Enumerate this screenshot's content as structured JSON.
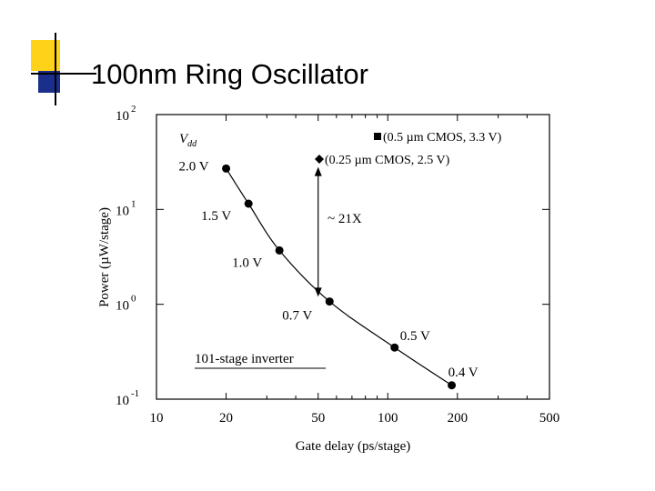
{
  "slide": {
    "title": "100nm Ring Oscillator",
    "colors": {
      "accent_yellow": "#ffd21a",
      "accent_blue": "#1a2f8c",
      "line": "#000000"
    }
  },
  "chart_data": {
    "type": "line",
    "title": "",
    "xlabel": "Gate delay (ps/stage)",
    "ylabel": "Power (µW/stage)",
    "xscale": "log",
    "yscale": "log",
    "xlim": [
      10,
      500
    ],
    "ylim": [
      0.1,
      100
    ],
    "x_ticks": [
      {
        "value": 10,
        "label": "10"
      },
      {
        "value": 20,
        "label": "20"
      },
      {
        "value": 50,
        "label": "50"
      },
      {
        "value": 100,
        "label": "100"
      },
      {
        "value": 200,
        "label": "200"
      },
      {
        "value": 500,
        "label": "500"
      }
    ],
    "y_ticks": [
      {
        "value": 0.1,
        "base": "10",
        "exp": "-1"
      },
      {
        "value": 1,
        "base": "10",
        "exp": "0"
      },
      {
        "value": 10,
        "base": "10",
        "exp": "1"
      },
      {
        "value": 100,
        "base": "10",
        "exp": "2"
      }
    ],
    "series": [
      {
        "name": "101-stage inverter",
        "points": [
          {
            "x": 20,
            "y": 27,
            "label": "2.0 V"
          },
          {
            "x": 25,
            "y": 11.5,
            "label": "1.5 V"
          },
          {
            "x": 34,
            "y": 3.7,
            "label": "1.0 V"
          },
          {
            "x": 56,
            "y": 1.07,
            "label": "0.7 V"
          },
          {
            "x": 107,
            "y": 0.35,
            "label": "0.5 V"
          },
          {
            "x": 189,
            "y": 0.14,
            "label": "0.4 V"
          }
        ]
      }
    ],
    "legend": [
      {
        "marker": "square",
        "text": "(0.5 µm CMOS, 3.3 V)"
      },
      {
        "marker": "diamond",
        "text": "(0.25 µm CMOS, 2.5 V)"
      }
    ],
    "annotations": {
      "vdd": "V",
      "vdd_sub": "dd",
      "inverter_label": "101-stage inverter",
      "ratio_label": "~ 21X",
      "arrow_x": 50,
      "arrow_y_top": 28,
      "arrow_y_bottom": 1.2
    }
  }
}
